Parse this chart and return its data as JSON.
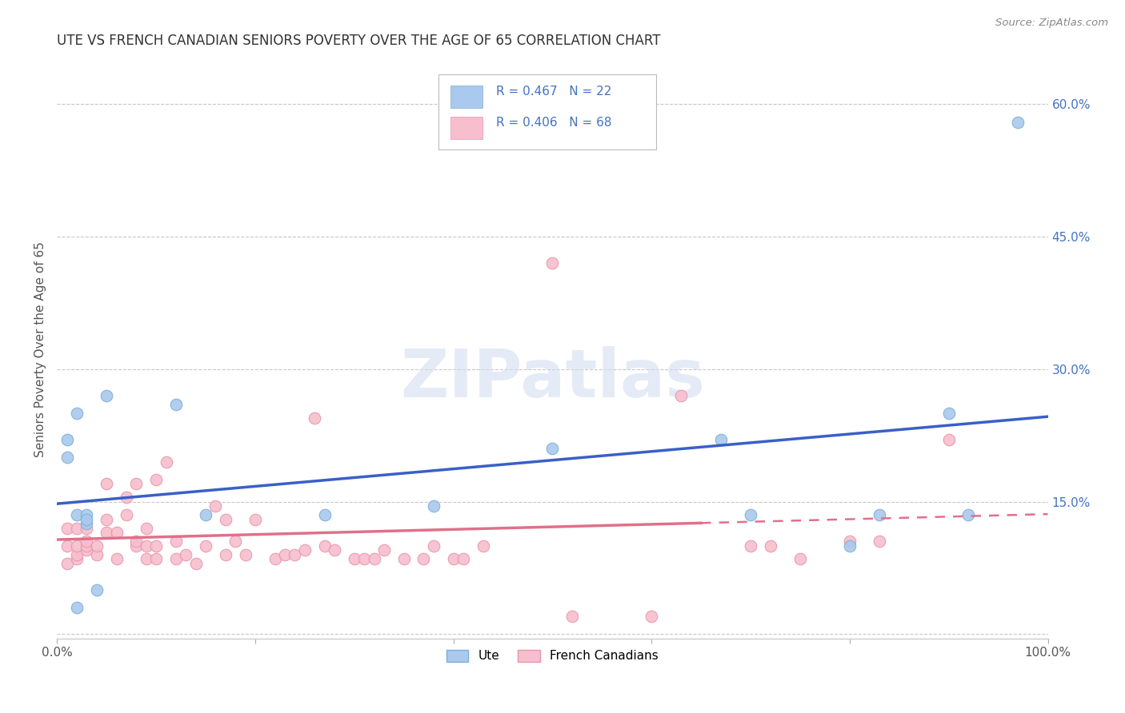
{
  "title": "UTE VS FRENCH CANADIAN SENIORS POVERTY OVER THE AGE OF 65 CORRELATION CHART",
  "source": "Source: ZipAtlas.com",
  "ylabel": "Seniors Poverty Over the Age of 65",
  "xlim": [
    0,
    1
  ],
  "ylim": [
    -0.005,
    0.65
  ],
  "xticks": [
    0.0,
    0.2,
    0.4,
    0.6,
    0.8,
    1.0
  ],
  "xtick_labels": [
    "0.0%",
    "",
    "",
    "",
    "",
    "100.0%"
  ],
  "yticks": [
    0.0,
    0.15,
    0.3,
    0.45,
    0.6
  ],
  "ytick_labels": [
    "",
    "15.0%",
    "30.0%",
    "45.0%",
    "60.0%"
  ],
  "ute_color": "#aac9ee",
  "ute_edge": "#7bafd4",
  "fc_color": "#f7bece",
  "fc_edge": "#e896ab",
  "ute_R": 0.467,
  "ute_N": 22,
  "fc_R": 0.406,
  "fc_N": 68,
  "legend_text_color": "#4472c4",
  "background_color": "#ffffff",
  "grid_color": "#c8c8c8",
  "watermark": "ZIPatlas",
  "ute_line_color": "#3a5fc8",
  "fc_line_color": "#e0708a",
  "ute_x": [
    0.01,
    0.01,
    0.02,
    0.02,
    0.03,
    0.03,
    0.04,
    0.05,
    0.12,
    0.15,
    0.27,
    0.38,
    0.5,
    0.67,
    0.7,
    0.8,
    0.83,
    0.9,
    0.92,
    0.97,
    0.02,
    0.03
  ],
  "ute_y": [
    0.2,
    0.22,
    0.135,
    0.25,
    0.135,
    0.125,
    0.05,
    0.27,
    0.26,
    0.135,
    0.135,
    0.145,
    0.21,
    0.22,
    0.135,
    0.1,
    0.135,
    0.25,
    0.135,
    0.58,
    0.03,
    0.13
  ],
  "fc_x": [
    0.01,
    0.01,
    0.01,
    0.02,
    0.02,
    0.02,
    0.02,
    0.03,
    0.03,
    0.03,
    0.03,
    0.04,
    0.04,
    0.05,
    0.05,
    0.05,
    0.06,
    0.06,
    0.07,
    0.07,
    0.08,
    0.08,
    0.08,
    0.09,
    0.09,
    0.09,
    0.1,
    0.1,
    0.1,
    0.11,
    0.12,
    0.12,
    0.13,
    0.14,
    0.15,
    0.16,
    0.17,
    0.17,
    0.18,
    0.19,
    0.2,
    0.22,
    0.23,
    0.24,
    0.25,
    0.26,
    0.27,
    0.28,
    0.3,
    0.31,
    0.32,
    0.33,
    0.35,
    0.37,
    0.38,
    0.4,
    0.41,
    0.43,
    0.5,
    0.52,
    0.6,
    0.63,
    0.7,
    0.72,
    0.75,
    0.8,
    0.83,
    0.9
  ],
  "fc_y": [
    0.08,
    0.1,
    0.12,
    0.085,
    0.09,
    0.1,
    0.12,
    0.095,
    0.1,
    0.105,
    0.12,
    0.09,
    0.1,
    0.115,
    0.13,
    0.17,
    0.085,
    0.115,
    0.135,
    0.155,
    0.1,
    0.105,
    0.17,
    0.085,
    0.1,
    0.12,
    0.085,
    0.1,
    0.175,
    0.195,
    0.085,
    0.105,
    0.09,
    0.08,
    0.1,
    0.145,
    0.09,
    0.13,
    0.105,
    0.09,
    0.13,
    0.085,
    0.09,
    0.09,
    0.095,
    0.245,
    0.1,
    0.095,
    0.085,
    0.085,
    0.085,
    0.095,
    0.085,
    0.085,
    0.1,
    0.085,
    0.085,
    0.1,
    0.42,
    0.02,
    0.02,
    0.27,
    0.1,
    0.1,
    0.085,
    0.105,
    0.105,
    0.22
  ]
}
